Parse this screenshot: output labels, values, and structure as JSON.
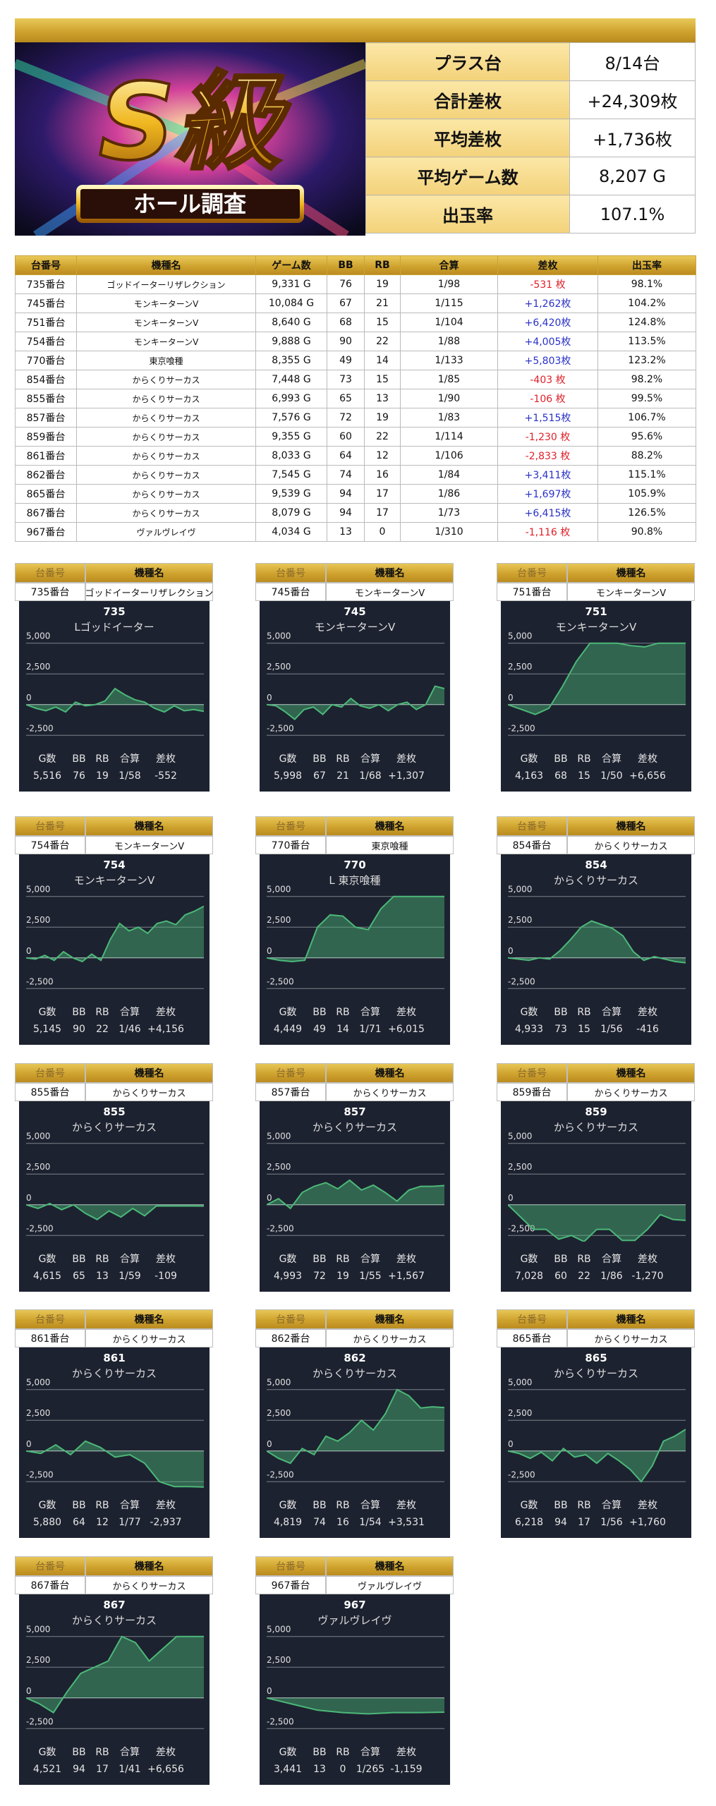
{
  "header": {
    "logo_title": "S級",
    "logo_subtitle": "ホール調査"
  },
  "summary": {
    "rows": [
      [
        "プラス台",
        "8/14台"
      ],
      [
        "合計差枚",
        "+24,309枚"
      ],
      [
        "平均差枚",
        "+1,736枚"
      ],
      [
        "平均ゲーム数",
        "8,207 G"
      ],
      [
        "出玉率",
        "107.1%"
      ]
    ]
  },
  "table": {
    "headers": [
      "台番号",
      "機種名",
      "ゲーム数",
      "BB",
      "RB",
      "合算",
      "差枚",
      "出玉率"
    ],
    "rows": [
      [
        "735番台",
        "ゴッドイーターリザレクション",
        "9,331 G",
        "76",
        "19",
        "1/98",
        "-531 枚",
        "98.1%"
      ],
      [
        "745番台",
        "モンキーターンV",
        "10,084 G",
        "67",
        "21",
        "1/115",
        "+1,262枚",
        "104.2%"
      ],
      [
        "751番台",
        "モンキーターンV",
        "8,640 G",
        "68",
        "15",
        "1/104",
        "+6,420枚",
        "124.8%"
      ],
      [
        "754番台",
        "モンキーターンV",
        "9,888 G",
        "90",
        "22",
        "1/88",
        "+4,005枚",
        "113.5%"
      ],
      [
        "770番台",
        "東京喰種",
        "8,355 G",
        "49",
        "14",
        "1/133",
        "+5,803枚",
        "123.2%"
      ],
      [
        "854番台",
        "からくりサーカス",
        "7,448 G",
        "73",
        "15",
        "1/85",
        "-403 枚",
        "98.2%"
      ],
      [
        "855番台",
        "からくりサーカス",
        "6,993 G",
        "65",
        "13",
        "1/90",
        "-106 枚",
        "99.5%"
      ],
      [
        "857番台",
        "からくりサーカス",
        "7,576 G",
        "72",
        "19",
        "1/83",
        "+1,515枚",
        "106.7%"
      ],
      [
        "859番台",
        "からくりサーカス",
        "9,355 G",
        "60",
        "22",
        "1/114",
        "-1,230 枚",
        "95.6%"
      ],
      [
        "861番台",
        "からくりサーカス",
        "8,033 G",
        "64",
        "12",
        "1/106",
        "-2,833 枚",
        "88.2%"
      ],
      [
        "862番台",
        "からくりサーカス",
        "7,545 G",
        "74",
        "16",
        "1/84",
        "+3,411枚",
        "115.1%"
      ],
      [
        "865番台",
        "からくりサーカス",
        "9,539 G",
        "94",
        "17",
        "1/86",
        "+1,697枚",
        "105.9%"
      ],
      [
        "867番台",
        "からくりサーカス",
        "8,079 G",
        "94",
        "17",
        "1/73",
        "+6,415枚",
        "126.5%"
      ],
      [
        "967番台",
        "ヴァルヴレイヴ",
        "4,034 G",
        "13",
        "0",
        "1/310",
        "-1,116 枚",
        "90.8%"
      ]
    ]
  },
  "card_headers": [
    "台番号",
    "機種名"
  ],
  "stat_labels": [
    "G数",
    "BB",
    "RB",
    "合算",
    "差枚"
  ],
  "chart_axis": {
    "ylim": [
      -3000,
      5500
    ],
    "yticks": [
      {
        "value": 5000,
        "label": "5,000"
      },
      {
        "value": 2500,
        "label": "2,500"
      },
      0,
      {
        "value": -2500,
        "label": "-2,500"
      }
    ],
    "line_color": "#4cb878",
    "fill_color": "#4cb878"
  },
  "cards": [
    {
      "machine_no": "735番台",
      "name": "ゴッドイーターリザレクション",
      "chart": {
        "type": "area",
        "title": "735",
        "subtitle": "Lゴッドイーター",
        "values": [
          0,
          -300,
          -500,
          -200,
          -600,
          200,
          -100,
          0,
          300,
          1300,
          800,
          400,
          200,
          -300,
          -600,
          -100,
          -500,
          -400,
          -552
        ]
      },
      "stats": [
        "5,516",
        "76",
        "19",
        "1/58",
        "-552"
      ]
    },
    {
      "machine_no": "745番台",
      "name": "モンキーターンV",
      "chart": {
        "type": "area",
        "title": "745",
        "subtitle": "モンキーターンV",
        "values": [
          0,
          -100,
          -600,
          -1200,
          -400,
          -200,
          -800,
          0,
          -200,
          500,
          -100,
          -300,
          0,
          -500,
          0,
          200,
          -400,
          0,
          1500,
          1307
        ]
      },
      "stats": [
        "5,998",
        "67",
        "21",
        "1/68",
        "+1,307"
      ]
    },
    {
      "machine_no": "751番台",
      "name": "モンキーターンV",
      "chart": {
        "type": "area",
        "title": "751",
        "subtitle": "モンキーターンV",
        "values": [
          0,
          -400,
          -800,
          -300,
          1500,
          3500,
          5000,
          5000,
          5000,
          4800,
          4700,
          5000,
          5000,
          5000
        ]
      },
      "stats": [
        "4,163",
        "68",
        "15",
        "1/50",
        "+6,656"
      ]
    },
    {
      "machine_no": "754番台",
      "name": "モンキーターンV",
      "chart": {
        "type": "area",
        "title": "754",
        "subtitle": "モンキーターンV",
        "values": [
          0,
          -100,
          200,
          -200,
          500,
          0,
          -300,
          300,
          -200,
          1500,
          2800,
          2200,
          2500,
          2000,
          2800,
          3000,
          2700,
          3500,
          3800,
          4200
        ]
      },
      "stats": [
        "5,145",
        "90",
        "22",
        "1/46",
        "+4,156"
      ]
    },
    {
      "machine_no": "770番台",
      "name": "東京喰種",
      "chart": {
        "type": "area",
        "title": "770",
        "subtitle": "L 東京喰種",
        "values": [
          0,
          -200,
          -300,
          -200,
          2500,
          3500,
          3400,
          2500,
          2300,
          4000,
          5000,
          5000,
          5000,
          5000,
          5000
        ]
      },
      "stats": [
        "4,449",
        "49",
        "14",
        "1/71",
        "+6,015"
      ]
    },
    {
      "machine_no": "854番台",
      "name": "からくりサーカス",
      "chart": {
        "type": "area",
        "title": "854",
        "subtitle": "からくりサーカス",
        "values": [
          0,
          -100,
          -200,
          0,
          -100,
          600,
          1500,
          2500,
          3000,
          2700,
          2400,
          1800,
          500,
          -200,
          100,
          -100,
          -300,
          -400
        ]
      },
      "stats": [
        "4,933",
        "73",
        "15",
        "1/56",
        "-416"
      ]
    },
    {
      "machine_no": "855番台",
      "name": "からくりサーカス",
      "chart": {
        "type": "area",
        "title": "855",
        "subtitle": "からくりサーカス",
        "values": [
          0,
          -300,
          100,
          -400,
          0,
          -700,
          -1200,
          -500,
          -1000,
          -300,
          -900,
          -100,
          -100,
          -100,
          -100,
          -109
        ]
      },
      "stats": [
        "4,615",
        "65",
        "13",
        "1/59",
        "-109"
      ]
    },
    {
      "machine_no": "857番台",
      "name": "からくりサーカス",
      "chart": {
        "type": "area",
        "title": "857",
        "subtitle": "からくりサーカス",
        "values": [
          0,
          500,
          -300,
          1000,
          1500,
          1800,
          1300,
          2000,
          1200,
          1600,
          1000,
          300,
          1200,
          1500,
          1500,
          1567
        ]
      },
      "stats": [
        "4,993",
        "72",
        "19",
        "1/55",
        "+1,567"
      ]
    },
    {
      "machine_no": "859番台",
      "name": "からくりサーカス",
      "chart": {
        "type": "area",
        "title": "859",
        "subtitle": "からくりサーカス",
        "values": [
          0,
          -1000,
          -2000,
          -2000,
          -2800,
          -2500,
          -3000,
          -2000,
          -2000,
          -2900,
          -2900,
          -2000,
          -800,
          -1200,
          -1270
        ]
      },
      "stats": [
        "7,028",
        "60",
        "22",
        "1/86",
        "-1,270"
      ]
    },
    {
      "machine_no": "861番台",
      "name": "からくりサーカス",
      "chart": {
        "type": "area",
        "title": "861",
        "subtitle": "からくりサーカス",
        "values": [
          0,
          -200,
          500,
          -300,
          800,
          300,
          -500,
          -300,
          -1000,
          -2500,
          -2900,
          -2900,
          -2937
        ]
      },
      "stats": [
        "5,880",
        "64",
        "12",
        "1/77",
        "-2,937"
      ]
    },
    {
      "machine_no": "862番台",
      "name": "からくりサーカス",
      "chart": {
        "type": "area",
        "title": "862",
        "subtitle": "からくりサーカス",
        "values": [
          0,
          -600,
          -1000,
          200,
          -300,
          1200,
          800,
          1500,
          2500,
          1700,
          3000,
          5000,
          4500,
          3500,
          3600,
          3531
        ]
      },
      "stats": [
        "4,819",
        "74",
        "16",
        "1/54",
        "+3,531"
      ]
    },
    {
      "machine_no": "865番台",
      "name": "からくりサーカス",
      "chart": {
        "type": "area",
        "title": "865",
        "subtitle": "からくりサーカス",
        "values": [
          0,
          -200,
          -600,
          -100,
          -800,
          200,
          -500,
          -300,
          -1000,
          -200,
          -800,
          -1500,
          -2500,
          -1200,
          800,
          1200,
          1760
        ]
      },
      "stats": [
        "6,218",
        "94",
        "17",
        "1/56",
        "+1,760"
      ]
    },
    {
      "machine_no": "867番台",
      "name": "からくりサーカス",
      "chart": {
        "type": "area",
        "title": "867",
        "subtitle": "からくりサーカス",
        "values": [
          0,
          -500,
          -1200,
          500,
          2000,
          2500,
          3000,
          5000,
          4500,
          3000,
          4000,
          5000,
          5000,
          5000
        ]
      },
      "stats": [
        "4,521",
        "94",
        "17",
        "1/41",
        "+6,656"
      ]
    },
    {
      "machine_no": "967番台",
      "name": "ヴァルヴレイヴ",
      "chart": {
        "type": "area",
        "title": "967",
        "subtitle": "ヴァルヴレイヴ",
        "values": [
          0,
          -500,
          -1000,
          -1200,
          -1300,
          -1200,
          -1200,
          -1159
        ]
      },
      "stats": [
        "3,441",
        "13",
        "0",
        "1/265",
        "-1,159"
      ]
    }
  ]
}
